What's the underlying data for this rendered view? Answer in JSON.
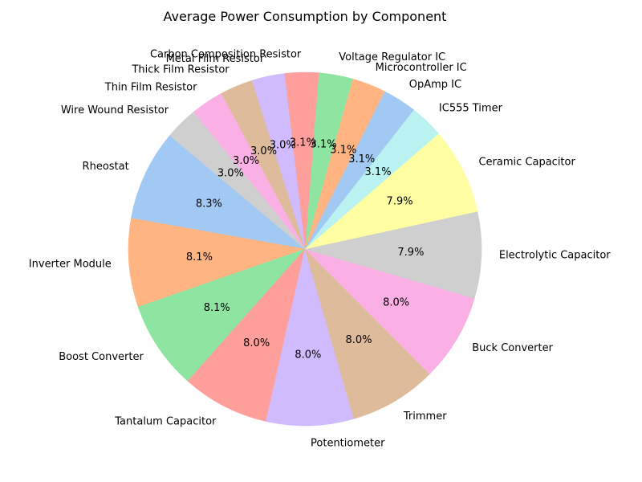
{
  "chart_data": {
    "type": "pie",
    "title": "Average Power Consumption by Component",
    "start_angle_deg": 140,
    "direction": "counterclockwise",
    "slices": [
      {
        "label": "Rheostat",
        "value": 8.3,
        "pct_label": "8.3%",
        "color": "#a1c9f4"
      },
      {
        "label": "Inverter Module",
        "value": 8.1,
        "pct_label": "8.1%",
        "color": "#ffb482"
      },
      {
        "label": "Boost Converter",
        "value": 8.1,
        "pct_label": "8.1%",
        "color": "#8de5a1"
      },
      {
        "label": "Tantalum Capacitor",
        "value": 8.0,
        "pct_label": "8.0%",
        "color": "#ff9f9b"
      },
      {
        "label": "Potentiometer",
        "value": 8.0,
        "pct_label": "8.0%",
        "color": "#d0bbff"
      },
      {
        "label": "Trimmer",
        "value": 8.0,
        "pct_label": "8.0%",
        "color": "#debb9b"
      },
      {
        "label": "Buck Converter",
        "value": 8.0,
        "pct_label": "8.0%",
        "color": "#fab0e4"
      },
      {
        "label": "Electrolytic Capacitor",
        "value": 7.9,
        "pct_label": "7.9%",
        "color": "#cfcfcf"
      },
      {
        "label": "Ceramic Capacitor",
        "value": 7.9,
        "pct_label": "7.9%",
        "color": "#fffea3"
      },
      {
        "label": "IC555 Timer",
        "value": 3.1,
        "pct_label": "3.1%",
        "color": "#b9f2f0"
      },
      {
        "label": "OpAmp IC",
        "value": 3.1,
        "pct_label": "3.1%",
        "color": "#a1c9f4"
      },
      {
        "label": "Microcontroller IC",
        "value": 3.1,
        "pct_label": "3.1%",
        "color": "#ffb482"
      },
      {
        "label": "Voltage Regulator IC",
        "value": 3.1,
        "pct_label": "3.1%",
        "color": "#8de5a1"
      },
      {
        "label": "Carbon Composition Resistor",
        "value": 3.1,
        "pct_label": "3.1%",
        "color": "#ff9f9b"
      },
      {
        "label": "Metal Film Resistor",
        "value": 3.0,
        "pct_label": "3.0%",
        "color": "#d0bbff"
      },
      {
        "label": "Thick Film Resistor",
        "value": 3.0,
        "pct_label": "3.0%",
        "color": "#debb9b"
      },
      {
        "label": "Thin Film Resistor",
        "value": 3.0,
        "pct_label": "3.0%",
        "color": "#fab0e4"
      },
      {
        "label": "Wire Wound Resistor",
        "value": 3.0,
        "pct_label": "3.0%",
        "color": "#cfcfcf"
      }
    ]
  }
}
